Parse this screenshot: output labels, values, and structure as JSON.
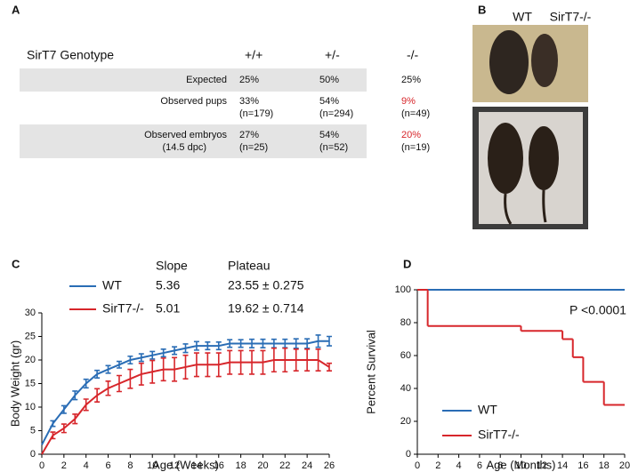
{
  "panels": [
    "A",
    "B",
    "C",
    "D"
  ],
  "table": {
    "header": [
      "SirT7 Genotype",
      "+/+",
      "+/-",
      "-/-"
    ],
    "highlight_color": "#d7262b",
    "rows": [
      {
        "label": "Expected",
        "cells": [
          {
            "pct": "25%"
          },
          {
            "pct": "50%"
          },
          {
            "pct": "25%"
          }
        ]
      },
      {
        "label": "Observed pups",
        "cells": [
          {
            "pct": "33%",
            "n": "(n=179)"
          },
          {
            "pct": "54%",
            "n": "(n=294)"
          },
          {
            "pct": "9%",
            "n": "(n=49)",
            "highlight": true
          }
        ]
      },
      {
        "label": "Observed embryos",
        "sublabel": "(14.5 dpc)",
        "cells": [
          {
            "pct": "27%",
            "n": "(n=25)"
          },
          {
            "pct": "54%",
            "n": "(n=52)"
          },
          {
            "pct": "20%",
            "n": "(n=19)",
            "highlight": true
          }
        ]
      }
    ]
  },
  "photo_labels": [
    "WT",
    "SirT7-/-"
  ],
  "chart_data": [
    {
      "type": "line",
      "xlabel": "Age (Weeks)",
      "ylabel": "Body Weight (gr)",
      "xlim": [
        0,
        26
      ],
      "xticks": [
        0,
        2,
        4,
        6,
        8,
        10,
        12,
        14,
        16,
        18,
        20,
        22,
        24,
        26
      ],
      "ylim": [
        0,
        30
      ],
      "yticks": [
        0,
        5,
        10,
        15,
        20,
        25,
        30
      ],
      "stats_header": [
        "Slope",
        "Plateau"
      ],
      "x": [
        0,
        1,
        2,
        3,
        4,
        5,
        6,
        7,
        8,
        9,
        10,
        11,
        12,
        13,
        14,
        15,
        16,
        17,
        18,
        19,
        20,
        21,
        22,
        23,
        24,
        25,
        26
      ],
      "series": [
        {
          "name": "WT",
          "color": "#2a6db5",
          "slope": 5.36,
          "plateau": "23.55 ± 0.275",
          "values": [
            2,
            6.5,
            9.5,
            12.5,
            15,
            17,
            18,
            19,
            20,
            20.5,
            21,
            21.5,
            22,
            22.5,
            23,
            23,
            23,
            23.5,
            23.5,
            23.5,
            23.5,
            23.5,
            23.5,
            23.5,
            23.5,
            24,
            24
          ],
          "errors": [
            null,
            0.6,
            0.8,
            0.9,
            0.9,
            0.8,
            0.8,
            0.7,
            0.8,
            0.8,
            0.8,
            0.8,
            0.8,
            0.9,
            0.9,
            0.8,
            0.8,
            0.8,
            0.8,
            0.9,
            0.9,
            0.9,
            0.9,
            1,
            1,
            1.3,
            1
          ]
        },
        {
          "name": "SirT7-/-",
          "color": "#d7262b",
          "slope": 5.01,
          "plateau": "19.62 ± 0.714",
          "values": [
            0,
            4,
            5.5,
            7.5,
            10.5,
            12.5,
            14,
            15,
            16,
            17,
            17.5,
            18,
            18,
            18.5,
            19,
            19,
            19,
            19.5,
            19.5,
            19.5,
            19.5,
            20,
            20,
            20,
            20,
            20,
            18.5
          ],
          "errors": [
            null,
            0.7,
            0.9,
            1,
            1.2,
            1.4,
            1.5,
            1.7,
            2,
            2.3,
            2.4,
            2.4,
            2.5,
            2.5,
            2.5,
            2.5,
            2.5,
            2.5,
            2.5,
            2.5,
            2.5,
            2.5,
            2.5,
            2.3,
            2.3,
            2.3,
            0.8
          ]
        }
      ]
    },
    {
      "type": "step",
      "xlabel": "Age (Months)",
      "ylabel": "Percent Survival",
      "xlim": [
        0,
        20
      ],
      "xticks": [
        0,
        2,
        4,
        6,
        8,
        10,
        12,
        14,
        16,
        18,
        20
      ],
      "ylim": [
        0,
        100
      ],
      "yticks": [
        0,
        20,
        40,
        60,
        80,
        100
      ],
      "annotation": "P <0.0001",
      "series": [
        {
          "name": "WT",
          "color": "#2a6db5",
          "x": [
            0
          ],
          "values": [
            100
          ]
        },
        {
          "name": "SirT7-/-",
          "color": "#d7262b",
          "x": [
            0,
            1,
            10,
            14,
            15,
            16,
            18
          ],
          "values": [
            100,
            78,
            75,
            70,
            59,
            44,
            30
          ]
        }
      ]
    }
  ]
}
